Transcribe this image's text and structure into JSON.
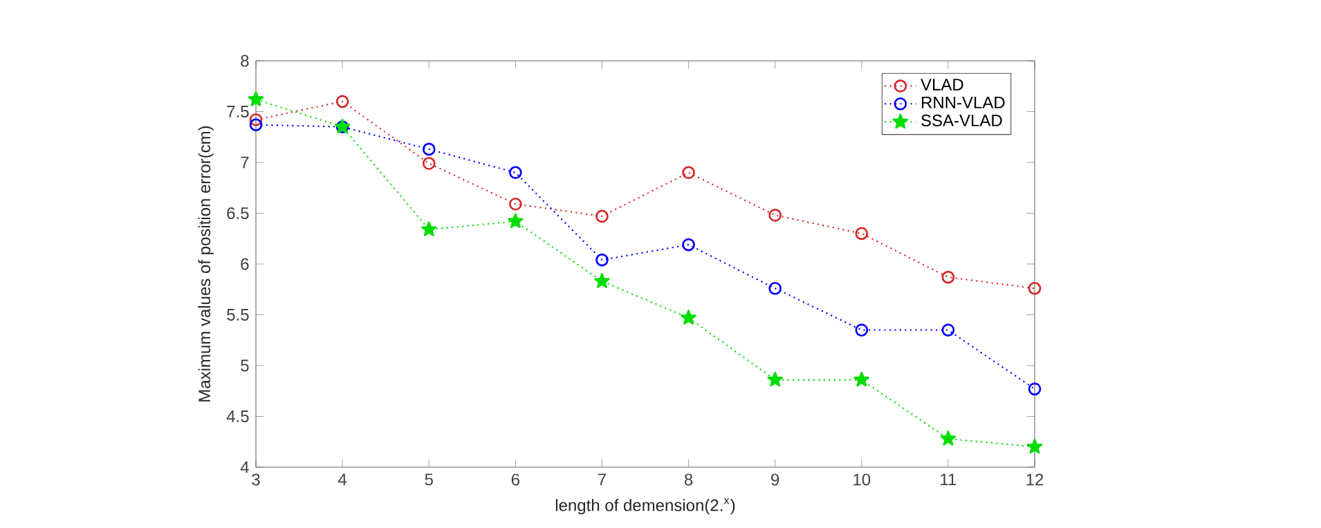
{
  "chart_data": {
    "type": "line",
    "xlabel": "length of demension(2.$^{x}$)",
    "ylabel": "Maximum values of position error(cm)",
    "x": [
      3,
      4,
      5,
      6,
      7,
      8,
      9,
      10,
      11,
      12
    ],
    "series": [
      {
        "name": "VLAD",
        "color": "#d62728",
        "marker": "circle",
        "values": [
          7.42,
          7.6,
          6.99,
          6.59,
          6.47,
          6.9,
          6.48,
          6.3,
          5.87,
          5.76
        ]
      },
      {
        "name": "RNN-VLAD",
        "color": "#0000ff",
        "marker": "circle",
        "values": [
          7.37,
          7.35,
          7.13,
          6.9,
          6.04,
          6.19,
          5.76,
          5.35,
          5.35,
          4.77
        ]
      },
      {
        "name": "SSA-VLAD",
        "color": "#00dd00",
        "marker": "star",
        "values": [
          7.62,
          7.35,
          6.34,
          6.42,
          5.83,
          5.47,
          4.86,
          4.86,
          4.28,
          4.2
        ]
      }
    ],
    "xlim": [
      3,
      12
    ],
    "ylim": [
      4,
      8
    ],
    "xticks": [
      3,
      4,
      5,
      6,
      7,
      8,
      9,
      10,
      11,
      12
    ],
    "yticks": [
      4,
      4.5,
      5,
      5.5,
      6,
      6.5,
      7,
      7.5,
      8
    ],
    "line_style": "dotted",
    "legend": "top right",
    "grid": false
  }
}
